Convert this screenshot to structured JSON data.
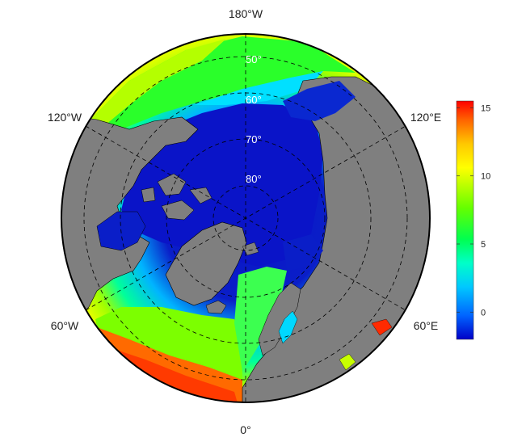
{
  "map": {
    "projection": "north-polar-stereographic",
    "lon_labels": {
      "top": "180°W",
      "bottom": "0°",
      "upper_left": "120°W",
      "upper_right": "120°E",
      "lower_left": "60°W",
      "lower_right": "60°E"
    },
    "lat_labels": [
      "50°",
      "60°",
      "70°",
      "80°"
    ],
    "colors": {
      "ocean_arctic": "#0a1ec8",
      "land": "#7f7f7f",
      "border": "#000000",
      "graticule": "#000000"
    }
  },
  "colorbar": {
    "ticks": [
      "15",
      "10",
      "5",
      "0"
    ],
    "min": -2,
    "max": 15.5,
    "colormap": [
      "#0000c8",
      "#0064ff",
      "#00c8ff",
      "#00ffc8",
      "#00ff50",
      "#64ff00",
      "#c8ff00",
      "#ffff00",
      "#ffc800",
      "#ff6400",
      "#ff0000"
    ]
  }
}
